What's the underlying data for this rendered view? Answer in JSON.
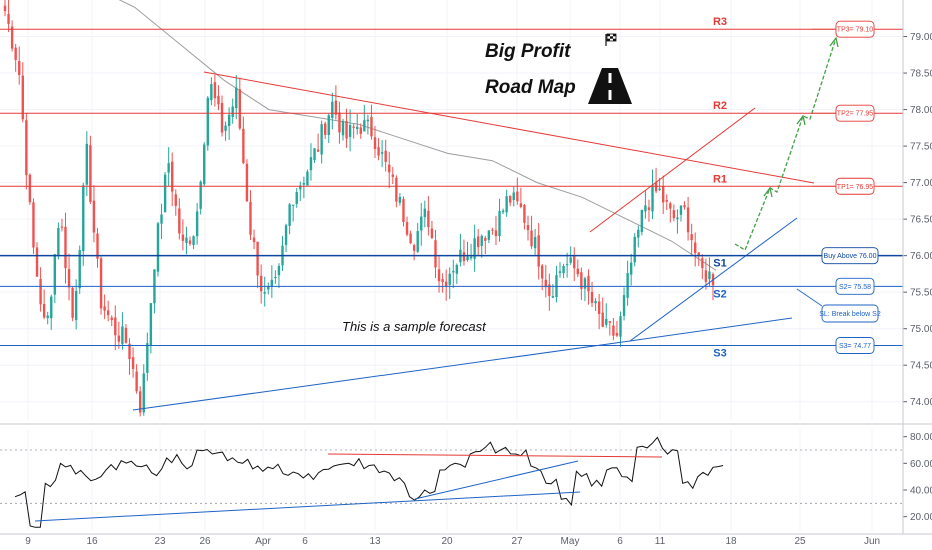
{
  "chart_data": [
    {
      "type": "candlestick",
      "ylim": [
        73.75,
        79.5
      ],
      "y_ticks": [
        "79.00",
        "78.50",
        "78.00",
        "77.50",
        "77.00",
        "76.50",
        "76.00",
        "75.50",
        "75.00",
        "74.50",
        "74.00"
      ],
      "x_ticks": [
        "9",
        "16",
        "23",
        "26",
        "Apr",
        "6",
        "13",
        "20",
        "27",
        "May",
        "6",
        "11",
        "18",
        "25",
        "Jun"
      ],
      "price_path": [
        79.35,
        78.6,
        76.2,
        74.9,
        76.6,
        75.1,
        77.4,
        75.4,
        75.0,
        74.8,
        73.9,
        76.0,
        77.3,
        76.1,
        76.4,
        78.4,
        77.7,
        78.2,
        76.4,
        75.4,
        75.6,
        76.8,
        77.1,
        77.5,
        78.1,
        77.6,
        77.8,
        77.7,
        77.2,
        76.7,
        76.2,
        76.6,
        75.6,
        75.9,
        76.1,
        76.3,
        76.4,
        76.8,
        76.6,
        76.1,
        75.5,
        75.9,
        75.8,
        75.4,
        75.0,
        74.9,
        75.9,
        76.7,
        76.9,
        76.5,
        76.6,
        75.8,
        75.7
      ],
      "moving_average": [
        79.7,
        79.4,
        78.9,
        78.4,
        78.0,
        77.9,
        77.8,
        77.6,
        77.4,
        77.3,
        77.0,
        76.8,
        76.5,
        76.2,
        75.8
      ],
      "levels": [
        {
          "label": "R3",
          "value": 79.1,
          "color": "#e53935"
        },
        {
          "label": "R2",
          "value": 77.95,
          "color": "#e53935"
        },
        {
          "label": "R1",
          "value": 76.95,
          "color": "#e53935"
        },
        {
          "label": "S1",
          "value": 76.0,
          "color": "#0d47a1"
        },
        {
          "label": "S2",
          "value": 75.58,
          "color": "#1e63c6"
        },
        {
          "label": "S3",
          "value": 74.77,
          "color": "#1e63c6"
        }
      ],
      "targets": [
        {
          "label": "TP3= 79.10",
          "color": "#e53935"
        },
        {
          "label": "TP2= 77.95",
          "color": "#e53935"
        },
        {
          "label": "TP1= 76.95",
          "color": "#e53935"
        }
      ],
      "notes": [
        {
          "label": "Buy Above 76.00",
          "color": "#0d47a1"
        },
        {
          "label": "S2= 75.58",
          "color": "#1e63c6"
        },
        {
          "label": "SL: Break below S2",
          "color": "#1e63c6"
        },
        {
          "label": "S3= 74.77",
          "color": "#1e63c6"
        }
      ],
      "title_line1": "Big Profit",
      "title_line2": "Road Map",
      "annotation": "This is a sample forecast"
    },
    {
      "type": "line",
      "indicator": "oscillator",
      "ylim": [
        10,
        85
      ],
      "y_ticks": [
        "80.00",
        "60.00",
        "40.00",
        "20.00"
      ],
      "values": [
        35,
        13,
        45,
        60,
        52,
        47,
        55,
        62,
        58,
        53,
        64,
        60,
        70,
        67,
        62,
        60,
        58,
        56,
        51,
        49,
        53,
        58,
        60,
        56,
        53,
        47,
        35,
        40,
        55,
        60,
        67,
        72,
        70,
        67,
        58,
        45,
        33,
        54,
        43,
        55,
        50,
        72,
        75,
        67,
        45,
        50,
        57
      ]
    }
  ],
  "colors": {
    "bull": "#26a69a",
    "bear": "#ef5350",
    "ma": "#9e9e9e",
    "grid": "#f0f3fa",
    "axis": "#5d606b"
  }
}
